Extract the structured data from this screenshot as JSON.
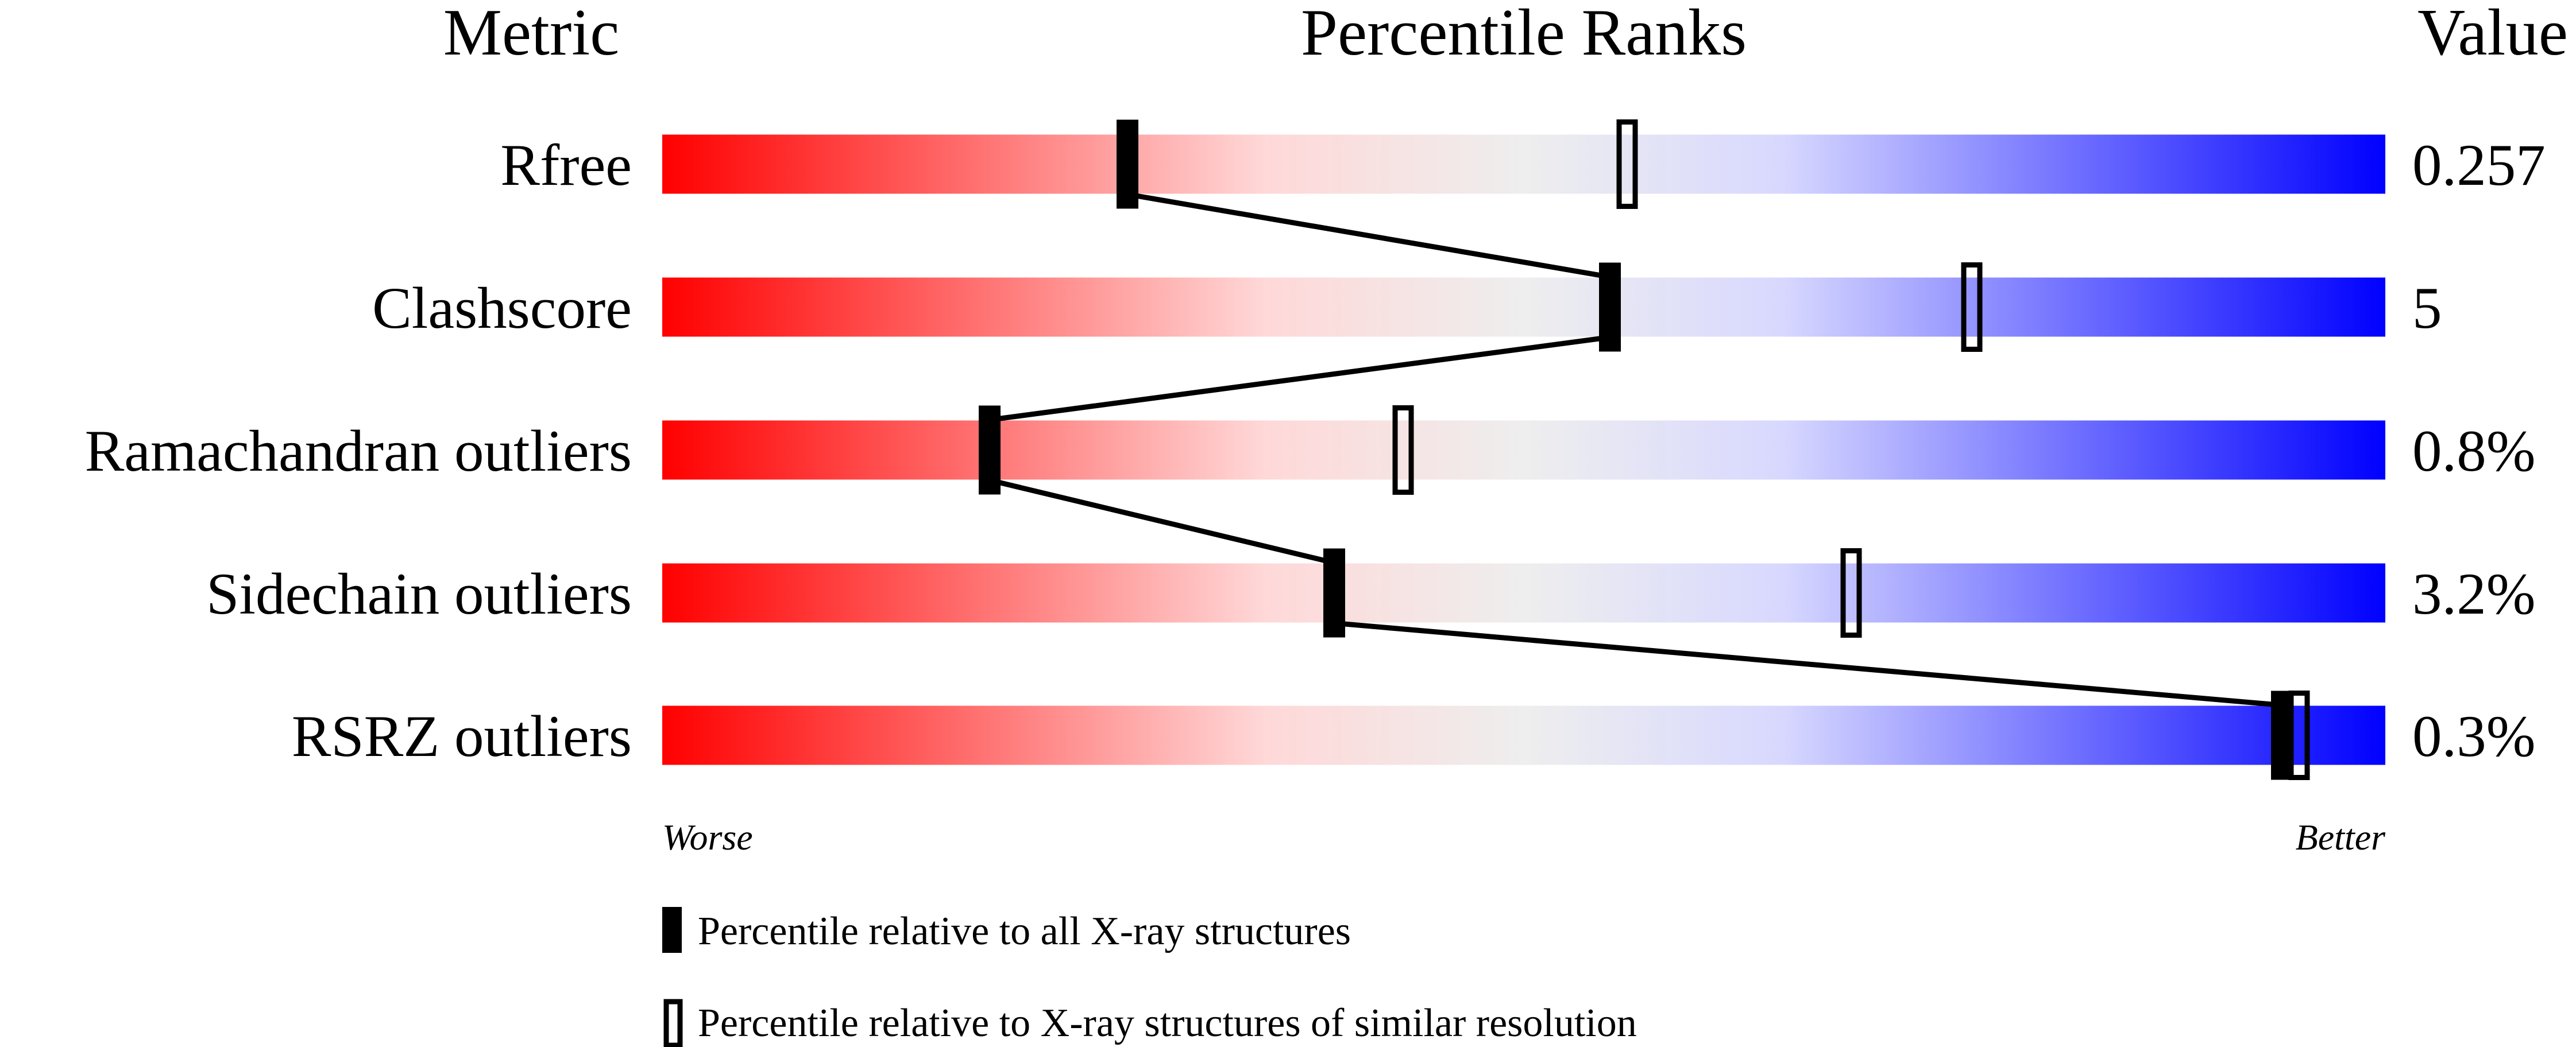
{
  "chart_data": {
    "type": "percentile-ranks",
    "headers": {
      "metric": "Metric",
      "ranks": "Percentile Ranks",
      "value": "Value"
    },
    "xlim": [
      0,
      100
    ],
    "axis_ends": {
      "left": "Worse",
      "right": "Better"
    },
    "gradient_colors": [
      "#ff0000",
      "#ffd8d8",
      "#eeeeee",
      "#d8d8ff",
      "#0000ff"
    ],
    "rows": [
      {
        "metric": "Rfree",
        "value": "0.257",
        "percentile_all": 27,
        "percentile_similar": 56
      },
      {
        "metric": "Clashscore",
        "value": "5",
        "percentile_all": 55,
        "percentile_similar": 76
      },
      {
        "metric": "Ramachandran outliers",
        "value": "0.8%",
        "percentile_all": 19,
        "percentile_similar": 43
      },
      {
        "metric": "Sidechain outliers",
        "value": "3.2%",
        "percentile_all": 39,
        "percentile_similar": 69
      },
      {
        "metric": "RSRZ outliers",
        "value": "0.3%",
        "percentile_all": 94,
        "percentile_similar": 95
      }
    ],
    "legend": [
      {
        "marker": "filled",
        "label": "Percentile relative to all X-ray structures"
      },
      {
        "marker": "hollow",
        "label": "Percentile relative to X-ray structures of similar resolution"
      }
    ]
  }
}
